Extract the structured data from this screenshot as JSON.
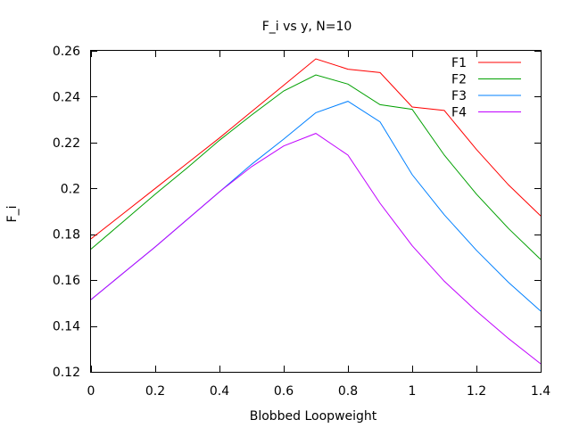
{
  "chart_data": {
    "type": "line",
    "title": "F_i vs y, N=10",
    "xlabel": "Blobbed Loopweight",
    "ylabel": "F_i",
    "xlim": [
      0,
      1.4
    ],
    "ylim": [
      0.12,
      0.26
    ],
    "grid": false,
    "legend_position": "top-right",
    "x_ticks": [
      0,
      0.2,
      0.4,
      0.6,
      0.8,
      1,
      1.2,
      1.4
    ],
    "x_tick_labels": [
      "0",
      "0.2",
      "0.4",
      "0.6",
      "0.8",
      "1",
      "1.2",
      "1.4"
    ],
    "y_ticks": [
      0.12,
      0.14,
      0.16,
      0.18,
      0.2,
      0.22,
      0.24,
      0.26
    ],
    "y_tick_labels": [
      "0.12",
      "0.14",
      "0.16",
      "0.18",
      "0.2",
      "0.22",
      "0.24",
      "0.26"
    ],
    "x": [
      0,
      0.1,
      0.2,
      0.3,
      0.4,
      0.5,
      0.6,
      0.7,
      0.8,
      0.9,
      1.0,
      1.1,
      1.2,
      1.3,
      1.4
    ],
    "series": [
      {
        "name": "F1",
        "color": "#ff0000",
        "values": [
          0.178,
          0.189,
          0.2,
          0.211,
          0.222,
          0.2335,
          0.245,
          0.2565,
          0.252,
          0.2505,
          0.2355,
          0.234,
          0.217,
          0.2015,
          0.188
        ]
      },
      {
        "name": "F2",
        "color": "#00a000",
        "values": [
          0.1735,
          0.1855,
          0.1975,
          0.209,
          0.221,
          0.232,
          0.2425,
          0.2495,
          0.2455,
          0.2365,
          0.2345,
          0.2145,
          0.1975,
          0.1825,
          0.169
        ]
      },
      {
        "name": "F3",
        "color": "#0080ff",
        "values": [
          0.1515,
          0.163,
          0.1745,
          0.1865,
          0.1985,
          0.2105,
          0.2215,
          0.233,
          0.238,
          0.229,
          0.206,
          0.1885,
          0.173,
          0.159,
          0.1465
        ]
      },
      {
        "name": "F4",
        "color": "#c000ff",
        "values": [
          0.1515,
          0.163,
          0.1745,
          0.1865,
          0.1985,
          0.2095,
          0.2185,
          0.224,
          0.2145,
          0.1935,
          0.175,
          0.1595,
          0.1465,
          0.1345,
          0.1235
        ]
      }
    ]
  }
}
